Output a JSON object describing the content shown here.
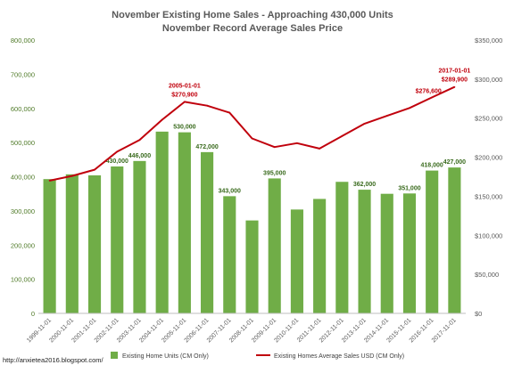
{
  "chart_data": {
    "type": "bar",
    "title_line1": "November Existing Home Sales - Approaching 430,000 Units",
    "title_line2": "November Record Average Sales Price",
    "categories": [
      "1999-11-01",
      "2000-11-01",
      "2001-11-01",
      "2002-11-01",
      "2003-11-01",
      "2004-11-01",
      "2005-11-01",
      "2006-11-01",
      "2007-11-01",
      "2008-11-01",
      "2009-11-01",
      "2010-11-01",
      "2011-11-01",
      "2012-11-01",
      "2013-11-01",
      "2014-11-01",
      "2015-11-01",
      "2016-11-01",
      "2017-11-01"
    ],
    "series": [
      {
        "name": "Existing Home Units (CM Only)",
        "type": "bar",
        "axis": "left",
        "color": "#70ad47",
        "values": [
          393000,
          407000,
          404000,
          430000,
          446000,
          532000,
          530000,
          472000,
          343000,
          272000,
          395000,
          304000,
          335000,
          385000,
          362000,
          350000,
          351000,
          418000,
          427000
        ],
        "data_labels": [
          "",
          "",
          "",
          "430,000",
          "446,000",
          "",
          "530,000",
          "472,000",
          "343,000",
          "",
          "395,000",
          "",
          "",
          "",
          "362,000",
          "",
          "351,000",
          "418,000",
          "427,000"
        ]
      },
      {
        "name": "Existing Homes Average Sales USD (CM Only)",
        "type": "line",
        "axis": "right",
        "color": "#c0000c",
        "values": [
          170000,
          176000,
          184000,
          207000,
          222000,
          248000,
          270900,
          266000,
          257000,
          224000,
          213000,
          218000,
          211000,
          227000,
          243000,
          253000,
          263000,
          276600,
          289900
        ]
      }
    ],
    "line_annotations": [
      {
        "index": 6,
        "date": "2005-01-01",
        "value_label": "$270,900"
      },
      {
        "index": 17,
        "date": "",
        "value_label": "$276,600"
      },
      {
        "index": 18,
        "date": "2017-01-01",
        "value_label": "$289,900"
      }
    ],
    "y_left": {
      "min": 0,
      "max": 800000,
      "step": 100000,
      "tick_labels": [
        "0",
        "100,000",
        "200,000",
        "300,000",
        "400,000",
        "500,000",
        "600,000",
        "700,000",
        "800,000"
      ]
    },
    "y_right": {
      "min": 0,
      "max": 350000,
      "step": 50000,
      "tick_labels": [
        "$0",
        "$50,000",
        "$100,000",
        "$150,000",
        "$200,000",
        "$250,000",
        "$300,000",
        "$350,000"
      ]
    },
    "grid": false,
    "legend_position": "bottom",
    "source_text": "http://anxietea2016.blogspot.com/"
  }
}
